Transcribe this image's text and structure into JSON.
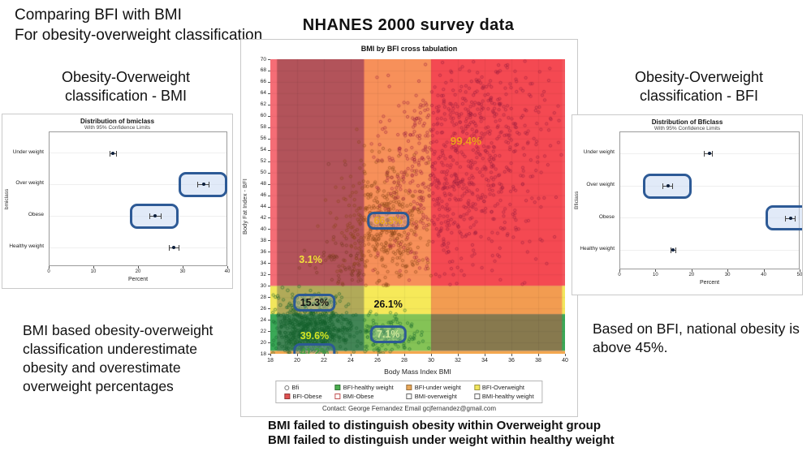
{
  "slide": {
    "title_line1": "Comparing BFI with BMI",
    "title_line2": "For obesity-overweight classification",
    "center_title": "NHANES 2000 survey data",
    "left_heading_line1": "Obesity-Overweight",
    "left_heading_line2": "classification - BMI",
    "right_heading_line1": "Obesity-Overweight",
    "right_heading_line2": "classification - BFI",
    "left_note": "BMI based obesity-overweight classification underestimate obesity and overestimate overweight percentages",
    "right_note": "Based on BFI, national obesity is above 45%.",
    "bottom_caption_line1": "BMI failed to distinguish obesity within Overweight group",
    "bottom_caption_line2": "BMI failed to distinguish under weight within healthy weight"
  },
  "chart_data": [
    {
      "id": "bmiclass-dotplot",
      "type": "scatter",
      "title": "Distribution of bmiclass",
      "subtitle": "With 95% Confidence Limits",
      "xlabel": "Percent",
      "ylabel": "bmiclass",
      "xlim": [
        0,
        40
      ],
      "xticks": [
        0,
        10,
        20,
        30,
        40
      ],
      "categories": [
        "Under weight",
        "Over weight",
        "Obese",
        "Healthy weight"
      ],
      "values": [
        14.2,
        34.6,
        23.7,
        27.8
      ],
      "ci_low": [
        13.4,
        33.0,
        22.4,
        26.7
      ],
      "ci_high": [
        15.1,
        35.9,
        25.1,
        29.1
      ],
      "highlighted": [
        1,
        2
      ]
    },
    {
      "id": "bmi-bfi-crosstab",
      "type": "scatter",
      "title": "BMI by BFI cross tabulation",
      "xlabel": "Body Mass Index BMI",
      "ylabel": "Body Fat Index - BFI",
      "xlim": [
        18,
        40
      ],
      "ylim": [
        18,
        70
      ],
      "xticks": [
        18,
        20,
        22,
        24,
        26,
        28,
        30,
        32,
        34,
        36,
        38,
        40
      ],
      "yticks": [
        18,
        20,
        22,
        24,
        26,
        28,
        30,
        32,
        34,
        36,
        38,
        40,
        42,
        44,
        46,
        48,
        50,
        52,
        54,
        56,
        58,
        60,
        62,
        64,
        66,
        68,
        70
      ],
      "grid": true,
      "bands_y": [
        {
          "label": "BFI-Obese",
          "from": 30,
          "to": 70,
          "color": "#f4565e"
        },
        {
          "label": "BFI-Overweight",
          "from": 25,
          "to": 30,
          "color": "#f2e65c"
        },
        {
          "label": "BFI-healthy weight",
          "from": 18.5,
          "to": 25,
          "color": "#3aa957"
        },
        {
          "label": "BFI-under weight",
          "from": 18,
          "to": 18.5,
          "color": "#f4a74f"
        }
      ],
      "bands_x": [
        {
          "label": "BMI-under weight",
          "from": 18,
          "to": 18.5,
          "y_from": 30,
          "y_to": 70,
          "color": "#f56d76"
        },
        {
          "label": "BMI-healthy weight",
          "from": 18.5,
          "to": 25,
          "y_from": 18.5,
          "y_to": 70,
          "color": "rgba(80,80,85,0.40)"
        },
        {
          "label": "BMI-overweight",
          "from": 25,
          "to": 30,
          "y_from": 18.5,
          "y_to": 70,
          "color": "rgba(252,238,85,0.38)"
        },
        {
          "label": "BMI-Obese",
          "from": 30,
          "to": 39.78,
          "y_from": 18.5,
          "y_to": 70,
          "color": "rgba(242,56,66,0.42)"
        }
      ],
      "annotations": [
        {
          "text": "99.4%",
          "x": 32.6,
          "y": 55.5,
          "color": "#efa01c",
          "boxed": false,
          "size": 13.5
        },
        {
          "text": "66.3%",
          "x": 26.8,
          "y": 41.5,
          "color": "#e8a51e",
          "boxed": true,
          "size": 12.5
        },
        {
          "text": "3.1%",
          "x": 21.0,
          "y": 34.6,
          "color": "#f2e23a",
          "boxed": false,
          "size": 12.5
        },
        {
          "text": "15.3%",
          "x": 21.3,
          "y": 27.0,
          "color": "#131313",
          "boxed": true,
          "size": 12.5
        },
        {
          "text": "26.1%",
          "x": 26.8,
          "y": 26.8,
          "color": "#131313",
          "boxed": false,
          "size": 12.5
        },
        {
          "text": "39.6%",
          "x": 21.3,
          "y": 21.1,
          "color": "#d3e521",
          "boxed": false,
          "size": 12.5
        },
        {
          "text": "7.1%",
          "x": 26.8,
          "y": 21.4,
          "color": "#cfe79b",
          "boxed": true,
          "size": 12.5
        },
        {
          "text": "41.2%",
          "x": 21.3,
          "y": 18.3,
          "color": "#3f9e3c",
          "boxed": true,
          "size": 12.5
        }
      ],
      "clusters": [
        {
          "label": "bfi-healthy-dense",
          "color": "#14602c",
          "n": 650,
          "cx": 21.0,
          "cy": 22.3,
          "sx": 1.55,
          "sy": 2.8,
          "clip": [
            18.15,
            25,
            18.05,
            30
          ]
        },
        {
          "label": "bfi-healthy-right",
          "color": "#1a6a30",
          "n": 130,
          "cx": 26.3,
          "cy": 21.2,
          "sx": 1.5,
          "sy": 2.1,
          "clip": [
            25,
            30,
            18.05,
            28.5
          ]
        },
        {
          "label": "overweight-column",
          "color": "#8a4618",
          "n": 430,
          "cx": 26.5,
          "cy": 40.0,
          "sx": 1.8,
          "sy": 6.2,
          "clip": [
            21.5,
            30,
            30,
            64
          ]
        },
        {
          "label": "healthy-column-upper",
          "color": "#7a3a20",
          "n": 60,
          "cx": 23.4,
          "cy": 33.8,
          "sx": 1.3,
          "sy": 2.4,
          "clip": [
            18.6,
            25,
            30,
            46
          ]
        },
        {
          "label": "bfi-obese-main",
          "color": "#9c1f3f",
          "n": 720,
          "cx": 31.6,
          "cy": 49.5,
          "sx": 3.1,
          "sy": 8.4,
          "clip": [
            25.5,
            40,
            30,
            70
          ]
        },
        {
          "label": "bfi-obese-upper",
          "color": "#9c1f3f",
          "n": 170,
          "cx": 34.5,
          "cy": 62.5,
          "sx": 3.0,
          "sy": 5.0,
          "clip": [
            27,
            40,
            46,
            70
          ]
        }
      ],
      "outlier_points": [
        {
          "x": 22.35,
          "y": 51.5,
          "color": "#7a3a2a"
        },
        {
          "x": 23.6,
          "y": 51.4,
          "color": "#7a3a2a"
        },
        {
          "x": 18.9,
          "y": 29.7,
          "color": "#14602c"
        },
        {
          "x": 18.55,
          "y": 28.2,
          "color": "#14602c"
        },
        {
          "x": 18.75,
          "y": 26.6,
          "color": "#14602c"
        },
        {
          "x": 19.3,
          "y": 29.2,
          "color": "#14602c"
        }
      ],
      "legend": [
        [
          {
            "shape": "circle",
            "color": "#777777",
            "label": "Bfi"
          },
          {
            "shape": "square",
            "color": "#4caf50",
            "label": "BFI-healthy weight"
          },
          {
            "shape": "square",
            "color": "#e8a85a",
            "label": "BFI-under weight"
          },
          {
            "shape": "square",
            "color": "#f2e65c",
            "label": "BFI-Overweight"
          }
        ],
        [
          {
            "shape": "square",
            "color": "#e05252",
            "label": "BFI-Obese"
          },
          {
            "shape": "square-outline",
            "color": "#c05050",
            "label": "BMI-Obese"
          },
          {
            "shape": "square-outline",
            "color": "#666666",
            "label": "BMI-overweight"
          },
          {
            "shape": "square-outline",
            "color": "#666666",
            "label": "BMI-healthy weight"
          }
        ]
      ],
      "contact": "Contact: George Fernandez Email gcjfernandez@gmail.com"
    },
    {
      "id": "bficlass-dotplot",
      "type": "scatter",
      "title": "Distribution of Bficlass",
      "subtitle": "With 95% Confidence Limits",
      "xlabel": "Percent",
      "ylabel": "Bficlass",
      "xlim": [
        0,
        50
      ],
      "xticks": [
        0,
        10,
        20,
        30,
        40,
        50
      ],
      "categories": [
        "Under weight",
        "Over weight",
        "Obese",
        "Healthy weight"
      ],
      "values": [
        24.8,
        13.2,
        47.4,
        14.6
      ],
      "ci_low": [
        23.3,
        11.8,
        45.8,
        13.9
      ],
      "ci_high": [
        25.7,
        14.6,
        48.6,
        15.6
      ],
      "highlighted": [
        1,
        2
      ]
    }
  ]
}
